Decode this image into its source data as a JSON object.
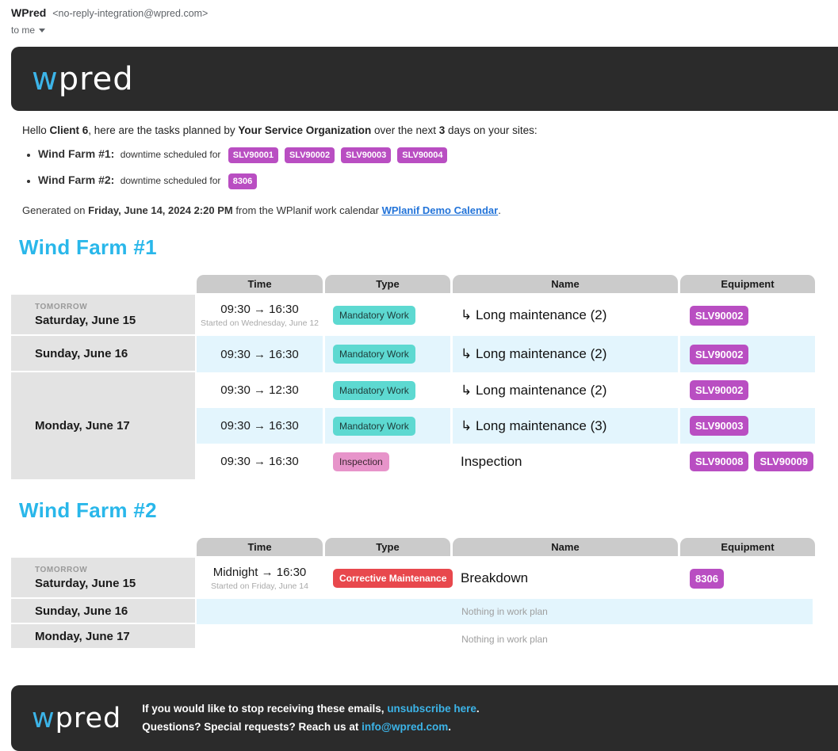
{
  "gmail": {
    "sender": "WPred",
    "address": "<no-reply-integration@wpred.com>",
    "to": "to me"
  },
  "logo": {
    "first": "w",
    "rest": "pred"
  },
  "intro": {
    "p1": "Hello ",
    "client": "Client 6",
    "p2": ", here are the tasks planned by ",
    "org": "Your Service Organization",
    "p3": " over the next ",
    "days": "3",
    "p4": " days on your sites:"
  },
  "bullets": [
    {
      "site": "Wind Farm #1:",
      "text": "downtime scheduled for",
      "badges": [
        "SLV90001",
        "SLV90002",
        "SLV90003",
        "SLV90004"
      ]
    },
    {
      "site": "Wind Farm #2:",
      "text": "downtime scheduled for",
      "badges": [
        "8306"
      ]
    }
  ],
  "generated": {
    "p1": "Generated on ",
    "date": "Friday, June 14, 2024 2:20 PM",
    "p2": " from the WPlanif work calendar ",
    "link": "WPlanif Demo Calendar",
    "p3": "."
  },
  "columns": {
    "time": "Time",
    "type": "Type",
    "name": "Name",
    "equipment": "Equipment"
  },
  "farm1": {
    "title": "Wind Farm #1",
    "dates": [
      {
        "tag": "TOMORROW",
        "label": "Saturday, June 15"
      },
      {
        "label": "Sunday, June 16"
      },
      {
        "label": "Monday, June 17"
      }
    ],
    "rows": [
      {
        "time": "09:30 → 16:30",
        "note": "Started on Wednesday, June 12",
        "type": "Mandatory Work",
        "name": "↳ Long maintenance (2)",
        "eq": [
          "SLV90002"
        ]
      },
      {
        "time": "09:30 → 16:30",
        "type": "Mandatory Work",
        "name": "↳ Long maintenance (2)",
        "eq": [
          "SLV90002"
        ]
      },
      {
        "time": "09:30 → 12:30",
        "type": "Mandatory Work",
        "name": "↳ Long maintenance (2)",
        "eq": [
          "SLV90002"
        ]
      },
      {
        "time": "09:30 → 16:30",
        "type": "Mandatory Work",
        "name": "↳ Long maintenance (3)",
        "eq": [
          "SLV90003"
        ]
      },
      {
        "time": "09:30 → 16:30",
        "type": "Inspection",
        "name": "Inspection",
        "eq": [
          "SLV90008",
          "SLV90009"
        ]
      }
    ]
  },
  "farm2": {
    "title": "Wind Farm #2",
    "dates": [
      {
        "tag": "TOMORROW",
        "label": "Saturday, June 15"
      },
      {
        "label": "Sunday, June 16"
      },
      {
        "label": "Monday, June 17"
      }
    ],
    "rows": [
      {
        "time": "Midnight → 16:30",
        "note": "Started on Friday, June 14",
        "type": "Corrective Maintenance",
        "name": "Breakdown",
        "eq": [
          "8306"
        ]
      }
    ],
    "empty_text": "Nothing in work plan"
  },
  "footer": {
    "line1_pre": "If you would like to stop receiving these emails, ",
    "line1_link": "unsubscribe here",
    "line1_post": ".",
    "line2_pre": "Questions? Special requests? Reach us at ",
    "line2_link": "info@wpred.com",
    "line2_post": "."
  },
  "colors": {
    "accent_blue": "#3cb4e8",
    "heading_cyan": "#29b7ea",
    "badge_magenta": "#b94ec2",
    "badge_teal": "#5dd9d1",
    "badge_pink": "#e794ca",
    "badge_red": "#e8484d",
    "dark_bar": "#2b2b2b",
    "row_highlight_blue": "#e3f5fd",
    "table_header_gray": "#cbcbcb",
    "date_cell_gray": "#e3e3e3"
  }
}
